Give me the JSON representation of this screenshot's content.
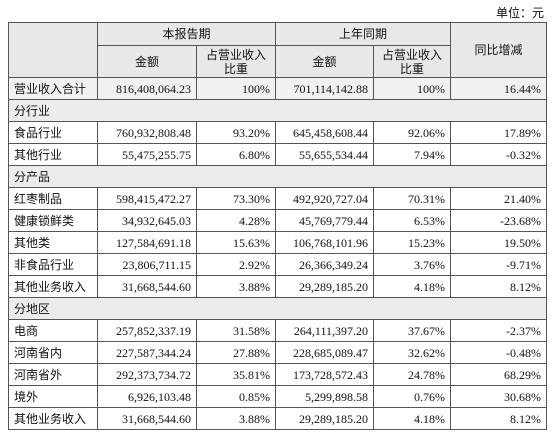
{
  "unit": "单位：元",
  "header": {
    "report_period": "本报告期",
    "prior_period": "上年同期",
    "amount": "金额",
    "share": [
      "占营业收入",
      "比重"
    ],
    "yoy": "同比增减"
  },
  "rows": [
    [
      "营业收入合计",
      "816,408,064.23",
      "100%",
      "701,114,142.88",
      "100%",
      "16.44%"
    ],
    [
      "分行业"
    ],
    [
      "食品行业",
      "760,932,808.48",
      "93.20%",
      "645,458,608.44",
      "92.06%",
      "17.89%"
    ],
    [
      "其他行业",
      "55,475,255.75",
      "6.80%",
      "55,655,534.44",
      "7.94%",
      "-0.32%"
    ],
    [
      "分产品"
    ],
    [
      "红枣制品",
      "598,415,472.27",
      "73.30%",
      "492,920,727.04",
      "70.31%",
      "21.40%"
    ],
    [
      "健康锁鲜类",
      "34,932,645.03",
      "4.28%",
      "45,769,779.44",
      "6.53%",
      "-23.68%"
    ],
    [
      "其他类",
      "127,584,691.18",
      "15.63%",
      "106,768,101.96",
      "15.23%",
      "19.50%"
    ],
    [
      "非食品行业",
      "23,806,711.15",
      "2.92%",
      "26,366,349.24",
      "3.76%",
      "-9.71%"
    ],
    [
      "其他业务收入",
      "31,668,544.60",
      "3.88%",
      "29,289,185.20",
      "4.18%",
      "8.12%"
    ],
    [
      "分地区"
    ],
    [
      "电商",
      "257,852,337.19",
      "31.58%",
      "264,111,397.20",
      "37.67%",
      "-2.37%"
    ],
    [
      "河南省内",
      "227,587,344.24",
      "27.88%",
      "228,685,089.47",
      "32.62%",
      "-0.48%"
    ],
    [
      "河南省外",
      "292,373,734.72",
      "35.81%",
      "173,728,572.43",
      "24.78%",
      "68.29%"
    ],
    [
      "境外",
      "6,926,103.48",
      "0.85%",
      "5,299,898.58",
      "0.76%",
      "30.68%"
    ],
    [
      "其他业务收入",
      "31,668,544.60",
      "3.88%",
      "29,289,185.20",
      "4.18%",
      "8.12%"
    ]
  ]
}
